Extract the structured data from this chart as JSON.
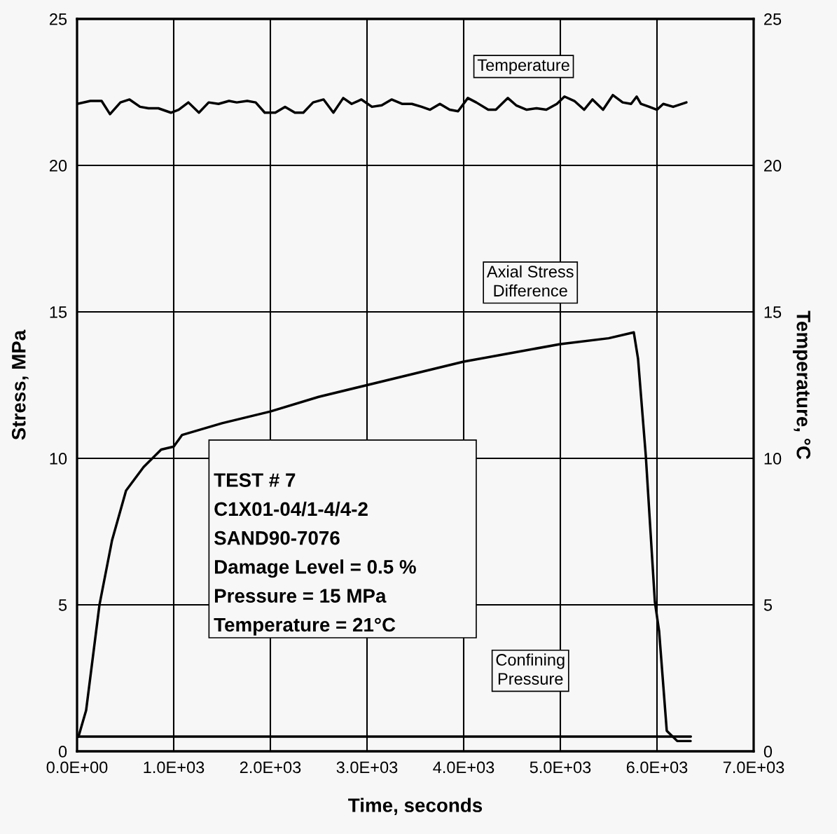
{
  "chart_data": {
    "type": "line",
    "xlabel": "Time, seconds",
    "ylabel": "Stress, MPa",
    "y2label": "Temperature, °C",
    "xlim": [
      0,
      7000
    ],
    "xticks": [
      {
        "value": 0,
        "label": "0.0E+00"
      },
      {
        "value": 1000,
        "label": "1.0E+03"
      },
      {
        "value": 2000,
        "label": "2.0E+03"
      },
      {
        "value": 3000,
        "label": "3.0E+03"
      },
      {
        "value": 4000,
        "label": "4.0E+03"
      },
      {
        "value": 5000,
        "label": "5.0E+03"
      },
      {
        "value": 6000,
        "label": "6.0E+03"
      },
      {
        "value": 7000,
        "label": "7.0E+03"
      }
    ],
    "ylim": [
      0,
      25
    ],
    "yticks": [
      0,
      5,
      10,
      15,
      20,
      25
    ],
    "y2lim": [
      0,
      25
    ],
    "y2ticks": [
      0,
      5,
      10,
      15,
      20,
      25
    ],
    "grid": true,
    "legend": false,
    "marker": "none",
    "line_style": "solid",
    "series": [
      {
        "name": "Temperature",
        "color": "#000000",
        "axis": "y2",
        "x": [
          0,
          138,
          254,
          341,
          449,
          543,
          652,
          739,
          841,
          971,
          1051,
          1152,
          1261,
          1362,
          1464,
          1572,
          1652,
          1761,
          1848,
          1942,
          2051,
          2152,
          2254,
          2341,
          2442,
          2551,
          2652,
          2754,
          2841,
          2942,
          3051,
          3152,
          3254,
          3362,
          3464,
          3565,
          3652,
          3754,
          3855,
          3942,
          4043,
          4130,
          4254,
          4333,
          4457,
          4543,
          4652,
          4754,
          4855,
          4964,
          5043,
          5145,
          5246,
          5333,
          5442,
          5543,
          5645,
          5732,
          5790,
          5833,
          5920,
          6000,
          6065,
          6167,
          6304
        ],
        "values": [
          22.1,
          22.2,
          22.2,
          21.75,
          22.15,
          22.25,
          22.0,
          21.95,
          21.95,
          21.8,
          21.9,
          22.15,
          21.8,
          22.15,
          22.1,
          22.2,
          22.15,
          22.2,
          22.15,
          21.8,
          21.8,
          22.0,
          21.8,
          21.8,
          22.15,
          22.25,
          21.8,
          22.3,
          22.1,
          22.25,
          22.0,
          22.05,
          22.25,
          22.1,
          22.1,
          22.0,
          21.9,
          22.1,
          21.9,
          21.85,
          22.3,
          22.15,
          21.9,
          21.9,
          22.3,
          22.05,
          21.9,
          21.95,
          21.9,
          22.1,
          22.35,
          22.2,
          21.9,
          22.25,
          21.9,
          22.4,
          22.15,
          22.1,
          22.35,
          22.1,
          22.0,
          21.9,
          22.1,
          22.0,
          22.15
        ]
      },
      {
        "name": "Axial Stress Difference",
        "color": "#000000",
        "x": [
          15,
          94,
          232,
          362,
          507,
          688,
          870,
          1000,
          1087,
          1500,
          2000,
          2500,
          3000,
          3500,
          4000,
          4500,
          5000,
          5500,
          5760,
          5804,
          5884,
          5978,
          6022,
          6101,
          6210,
          6348
        ],
        "values": [
          0.5,
          1.4,
          5.0,
          7.2,
          8.9,
          9.7,
          10.3,
          10.4,
          10.8,
          11.2,
          11.6,
          12.1,
          12.5,
          12.9,
          13.3,
          13.6,
          13.9,
          14.1,
          14.3,
          13.4,
          10.1,
          5.1,
          4.1,
          0.7,
          0.35,
          0.35
        ]
      },
      {
        "name": "Confining Pressure",
        "color": "#000000",
        "x": [
          0,
          6350
        ],
        "values": [
          0.5,
          0.5
        ]
      }
    ],
    "annotations": [
      "TEST # 7",
      "C1X01-04/1-4/4-2",
      "SAND90-7076",
      "Damage Level = 0.5 %",
      "Pressure = 15 MPa",
      "Temperature = 21°C"
    ]
  }
}
